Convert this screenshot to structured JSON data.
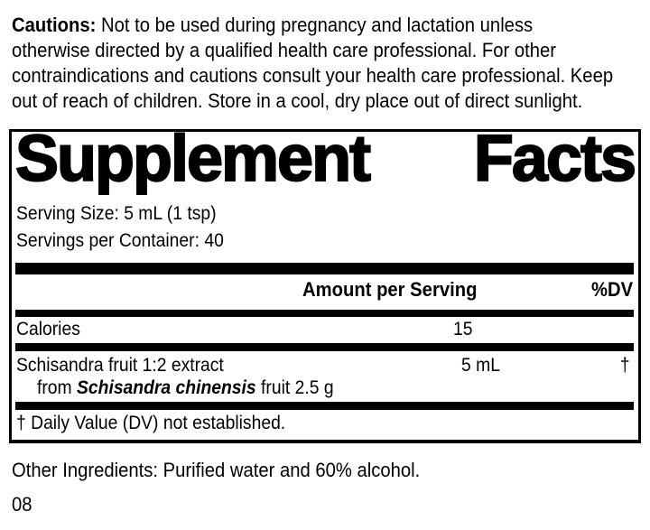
{
  "colors": {
    "text": "#000000",
    "background": "#ffffff"
  },
  "cautions": {
    "label": "Cautions:",
    "line1_rest": "Not to be used during pregnancy and lactation unless",
    "line2": "otherwise directed by a qualified health care professional. For other",
    "line3": "contraindications and cautions consult your health care professional. Keep",
    "line4": "out of reach of children. Store in a cool, dry place out of direct sunlight."
  },
  "supplement_facts": {
    "title_word1": "Supplement",
    "title_word2": "Facts",
    "serving_size": "Serving Size: 5 mL (1 tsp)",
    "servings_per_container": "Servings per Container: 40",
    "columns": {
      "amount": "Amount per Serving",
      "dv": "%DV"
    },
    "rows": [
      {
        "name": "Calories",
        "amount": "15",
        "dv": ""
      },
      {
        "name": "Schisandra fruit 1:2 extract",
        "source_prefix": "from",
        "source_species": "Schisandra chinensis",
        "source_suffix": "fruit 2.5 g",
        "amount": "5 mL",
        "dv": "†"
      }
    ],
    "footnote": "† Daily Value (DV) not established."
  },
  "other_ingredients": "Other Ingredients: Purified water and 60% alcohol.",
  "item_number": "08"
}
